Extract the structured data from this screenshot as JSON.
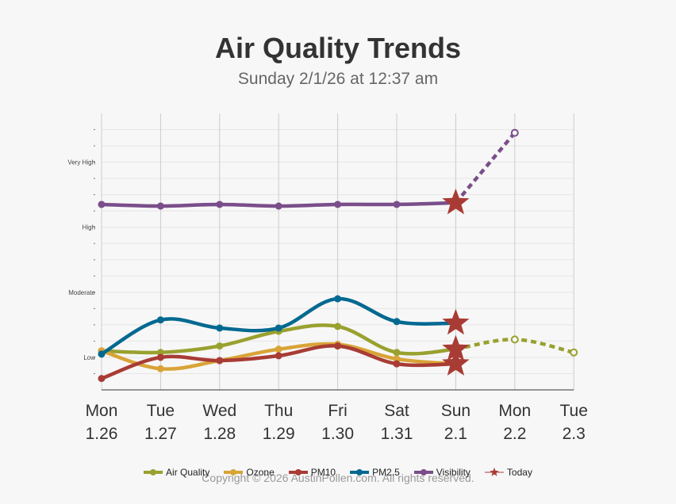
{
  "chart_data": {
    "type": "line",
    "title": "Air Quality Trends",
    "subtitle": "Sunday 2/1/26 at 12:37 am",
    "categories": [
      {
        "day": "Mon",
        "date": "1.26"
      },
      {
        "day": "Tue",
        "date": "1.27"
      },
      {
        "day": "Wed",
        "date": "1.28"
      },
      {
        "day": "Thu",
        "date": "1.29"
      },
      {
        "day": "Fri",
        "date": "1.30"
      },
      {
        "day": "Sat",
        "date": "1.31"
      },
      {
        "day": "Sun",
        "date": "2.1"
      },
      {
        "day": "Mon",
        "date": "2.2"
      },
      {
        "day": "Tue",
        "date": "2.3"
      }
    ],
    "y_levels": [
      {
        "label": "Low",
        "value": 2
      },
      {
        "label": "Moderate",
        "value": 6
      },
      {
        "label": "High",
        "value": 10
      },
      {
        "label": "Very High",
        "value": 14
      }
    ],
    "ylim": [
      0,
      17
    ],
    "today_index": 6,
    "series": [
      {
        "name": "Air Quality",
        "color": "#99a12f",
        "values": [
          2.4,
          2.3,
          2.7,
          3.6,
          3.9,
          2.3,
          2.5,
          3.1,
          2.3
        ]
      },
      {
        "name": "Ozone",
        "color": "#d9a437",
        "values": [
          2.4,
          1.3,
          1.8,
          2.5,
          2.8,
          1.9,
          1.6,
          null,
          null
        ]
      },
      {
        "name": "PM10",
        "color": "#a83c34",
        "values": [
          0.7,
          2.0,
          1.8,
          2.1,
          2.7,
          1.6,
          1.6,
          null,
          null
        ]
      },
      {
        "name": "PM2.5",
        "color": "#036991",
        "values": [
          2.2,
          4.3,
          3.8,
          3.8,
          5.6,
          4.2,
          4.1,
          null,
          null
        ]
      },
      {
        "name": "Visibility",
        "color": "#7a4e8a",
        "values": [
          11.4,
          11.3,
          11.4,
          11.3,
          11.4,
          11.4,
          11.5,
          15.8,
          null
        ]
      }
    ],
    "legend": [
      "Air Quality",
      "Ozone",
      "PM10",
      "PM2.5",
      "Visibility",
      "Today"
    ],
    "today_label": "Today",
    "today_color": "#a83c34"
  },
  "footer": {
    "copyright": "Copyright © 2026 AustinPollen.com.  All rights reserved."
  }
}
